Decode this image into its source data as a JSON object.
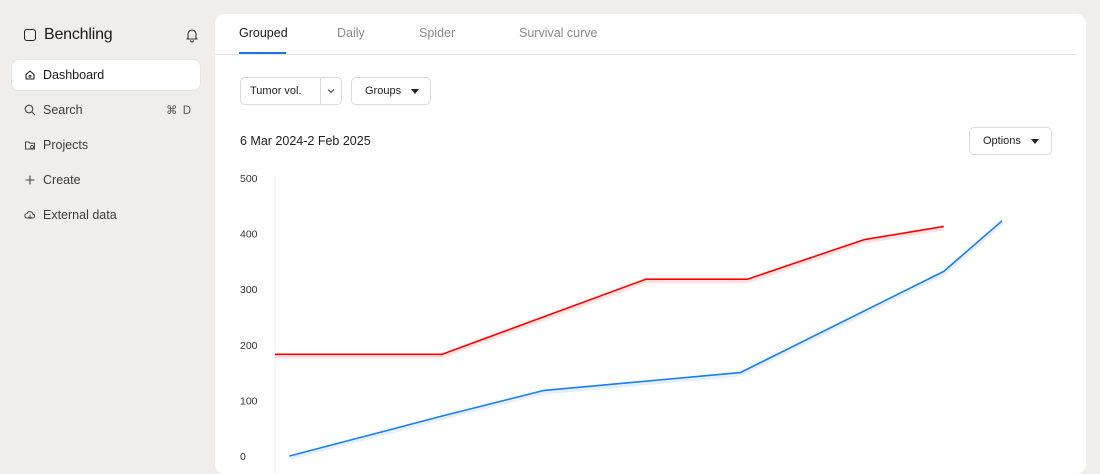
{
  "sidebar": {
    "brand": "Benchling",
    "items": [
      {
        "label": "Dashboard",
        "icon": "home-icon",
        "active": true
      },
      {
        "label": "Search",
        "icon": "search-icon",
        "shortcut": "⌘ D"
      },
      {
        "label": "Projects",
        "icon": "projects-icon"
      },
      {
        "label": "Create",
        "icon": "plus-icon"
      },
      {
        "label": "External data",
        "icon": "cloud-icon"
      }
    ]
  },
  "tabs": [
    {
      "label": "Grouped",
      "active": true
    },
    {
      "label": "Daily"
    },
    {
      "label": "Spider"
    },
    {
      "label": "Survival curve"
    }
  ],
  "controls": {
    "metric_value": "Tumor vol.",
    "groups_label": "Groups",
    "options_label": "Options"
  },
  "date_range": "6 Mar 2024-2 Feb 2025",
  "colors": {
    "accent": "#1a73e8",
    "series_red": "#ff0000",
    "series_blue": "#1a7df0"
  },
  "chart_data": {
    "type": "line",
    "title": "",
    "xlabel": "",
    "ylabel": "",
    "ylim": [
      0,
      500
    ],
    "yticks": [
      0,
      100,
      200,
      300,
      400,
      500
    ],
    "grid": false,
    "series": [
      {
        "color": "#ff0000",
        "points": [
          [
            0,
            183
          ],
          [
            0.23,
            183
          ],
          [
            0.51,
            318
          ],
          [
            0.65,
            318
          ],
          [
            0.81,
            389
          ],
          [
            0.92,
            413
          ]
        ]
      },
      {
        "color": "#1a7df0",
        "points": [
          [
            0.02,
            0
          ],
          [
            0.23,
            72
          ],
          [
            0.37,
            118
          ],
          [
            0.64,
            150
          ],
          [
            0.92,
            332
          ],
          [
            1.0,
            423
          ]
        ]
      }
    ]
  }
}
